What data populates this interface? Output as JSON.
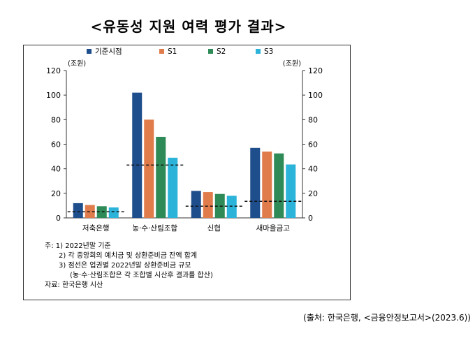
{
  "title": "<유동성 지원 여력 평가 결과>",
  "source": "(출처: 한국은행, <금융안정보고서>(2023.6))",
  "notes": [
    "주: 1) 2022년말 기준",
    "2) 각 중앙회의 예치금 및 상환준비금 잔액 합계",
    "3) 점선은 업권별 2022년말 상환준비금 규모",
    "(농·수·산림조합은 각 조합별 시산후 결과를 합산)",
    "자료: 한국은행 시산"
  ],
  "chart_data": {
    "type": "bar",
    "categories": [
      "저축은행",
      "농·수·산림조합",
      "신협",
      "새마을금고"
    ],
    "series": [
      {
        "name": "기준시점",
        "values": [
          12,
          102,
          22,
          57
        ],
        "color": "#1f4e8c"
      },
      {
        "name": "S1",
        "values": [
          10.5,
          80,
          21,
          54
        ],
        "color": "#e07b4b"
      },
      {
        "name": "S2",
        "values": [
          9.5,
          66,
          19.5,
          52.5
        ],
        "color": "#2e8b57"
      },
      {
        "name": "S3",
        "values": [
          8.5,
          49,
          18,
          43.5
        ],
        "color": "#2bb3d9"
      }
    ],
    "reference_lines": [
      5,
      43,
      9.5,
      13.5
    ],
    "ylim": [
      0,
      120
    ],
    "yticks": [
      0,
      20,
      40,
      60,
      80,
      100,
      120
    ],
    "ylabel_left": "(조원)",
    "ylabel_right": "(조원)",
    "legend_position": "top"
  }
}
